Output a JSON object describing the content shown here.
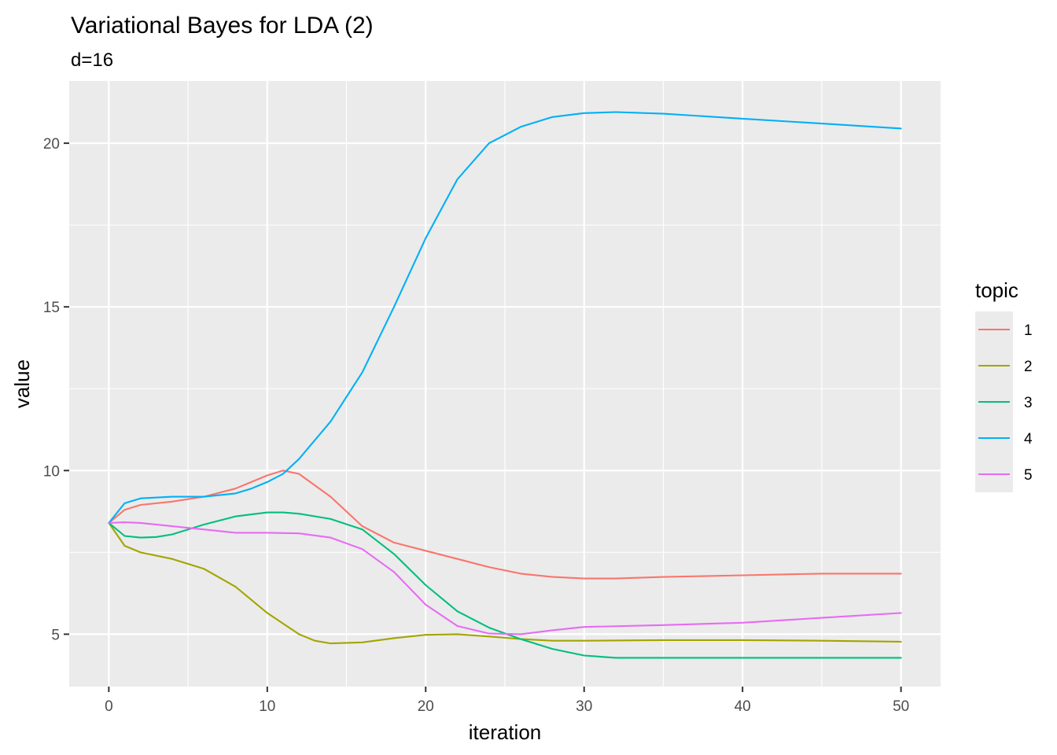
{
  "chart_data": {
    "type": "line",
    "title": "Variational Bayes for LDA (2)",
    "subtitle": "d=16",
    "xlabel": "iteration",
    "ylabel": "value",
    "xlim": [
      -2.5,
      52.5
    ],
    "ylim": [
      3.4,
      21.9
    ],
    "x_ticks": [
      0,
      10,
      20,
      30,
      40,
      50
    ],
    "y_ticks": [
      5,
      10,
      15,
      20
    ],
    "grid": true,
    "legend": {
      "title": "topic",
      "placement": "right"
    },
    "series": [
      {
        "name": "1",
        "color": "#F8766D",
        "x": [
          0,
          1,
          2,
          4,
          6,
          8,
          10,
          11,
          12,
          14,
          16,
          18,
          20,
          22,
          24,
          26,
          28,
          30,
          32,
          35,
          40,
          45,
          50
        ],
        "y": [
          8.4,
          8.8,
          8.95,
          9.05,
          9.2,
          9.45,
          9.85,
          10.0,
          9.9,
          9.2,
          8.3,
          7.8,
          7.55,
          7.3,
          7.05,
          6.85,
          6.75,
          6.7,
          6.7,
          6.75,
          6.8,
          6.85,
          6.85
        ]
      },
      {
        "name": "2",
        "color": "#A3A500",
        "x": [
          0,
          1,
          2,
          4,
          6,
          8,
          10,
          12,
          13,
          14,
          16,
          18,
          20,
          22,
          24,
          26,
          28,
          30,
          35,
          40,
          45,
          50
        ],
        "y": [
          8.4,
          7.7,
          7.5,
          7.3,
          7.0,
          6.45,
          5.65,
          5.0,
          4.8,
          4.72,
          4.75,
          4.88,
          4.98,
          5.0,
          4.93,
          4.85,
          4.8,
          4.8,
          4.82,
          4.82,
          4.8,
          4.77
        ]
      },
      {
        "name": "3",
        "color": "#00BF7D",
        "x": [
          0,
          1,
          2,
          3,
          4,
          6,
          8,
          10,
          11,
          12,
          14,
          16,
          18,
          20,
          22,
          24,
          26,
          28,
          30,
          32,
          35,
          40,
          45,
          50
        ],
        "y": [
          8.4,
          8.0,
          7.95,
          7.97,
          8.05,
          8.35,
          8.6,
          8.72,
          8.72,
          8.68,
          8.52,
          8.2,
          7.45,
          6.5,
          5.7,
          5.2,
          4.85,
          4.55,
          4.35,
          4.28,
          4.28,
          4.28,
          4.28,
          4.28
        ]
      },
      {
        "name": "4",
        "color": "#00B0F6",
        "x": [
          0,
          1,
          2,
          4,
          6,
          8,
          9,
          10,
          11,
          12,
          14,
          16,
          18,
          20,
          22,
          24,
          26,
          28,
          30,
          32,
          35,
          40,
          45,
          50
        ],
        "y": [
          8.4,
          9.0,
          9.15,
          9.2,
          9.2,
          9.3,
          9.45,
          9.65,
          9.9,
          10.35,
          11.5,
          13.0,
          15.0,
          17.1,
          18.9,
          20.0,
          20.5,
          20.8,
          20.92,
          20.95,
          20.9,
          20.75,
          20.6,
          20.45
        ]
      },
      {
        "name": "5",
        "color": "#E76BF3",
        "x": [
          0,
          1,
          2,
          4,
          6,
          8,
          10,
          12,
          14,
          16,
          18,
          20,
          22,
          24,
          26,
          28,
          30,
          35,
          40,
          45,
          50
        ],
        "y": [
          8.4,
          8.42,
          8.4,
          8.3,
          8.2,
          8.1,
          8.1,
          8.08,
          7.95,
          7.6,
          6.9,
          5.9,
          5.25,
          5.02,
          5.0,
          5.12,
          5.22,
          5.28,
          5.35,
          5.5,
          5.65
        ]
      }
    ]
  }
}
